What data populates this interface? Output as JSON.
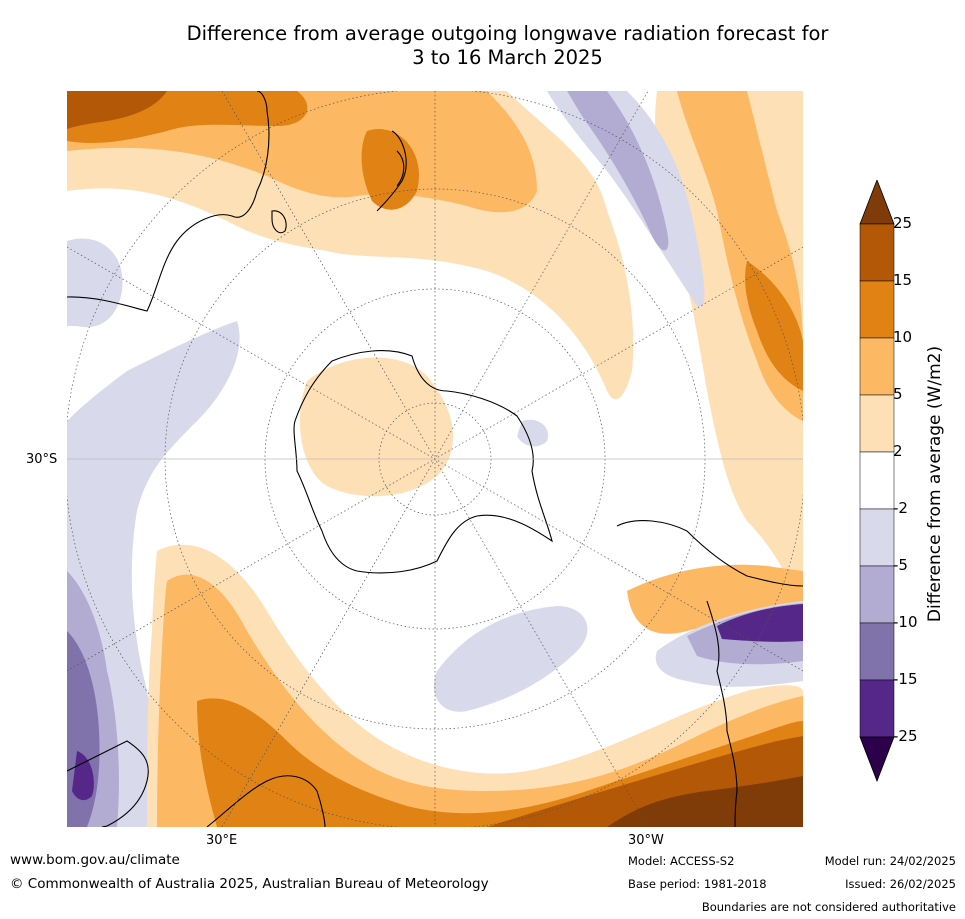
{
  "title_line1": "Difference from average outgoing longwave radiation forecast for",
  "title_line2": "3 to 16 March 2025",
  "axis_labels": {
    "lat": "30°S",
    "lon_left": "30°E",
    "lon_right": "30°W"
  },
  "colorbar": {
    "label": "Difference from average (W/m2)",
    "ticks": [
      "25",
      "15",
      "10",
      "5",
      "2",
      "-2",
      "-5",
      "-10",
      "-15",
      "-25"
    ],
    "colors": [
      "#7f3b08",
      "#b35806",
      "#e08214",
      "#fdb863",
      "#fee0b6",
      "#ffffff",
      "#d8daeb",
      "#b2abd2",
      "#8073ac",
      "#542788",
      "#2d004b"
    ]
  },
  "footer": {
    "url": "www.bom.gov.au/climate",
    "copyright": "© Commonwealth of Australia 2025, Australian Bureau of Meteorology",
    "model": "Model: ACCESS-S2",
    "base_period": "Base period: 1981-2018",
    "model_run": "Model run: 24/02/2025",
    "issued": "Issued: 26/02/2025",
    "disclaimer": "Boundaries are not considered authoritative"
  }
}
